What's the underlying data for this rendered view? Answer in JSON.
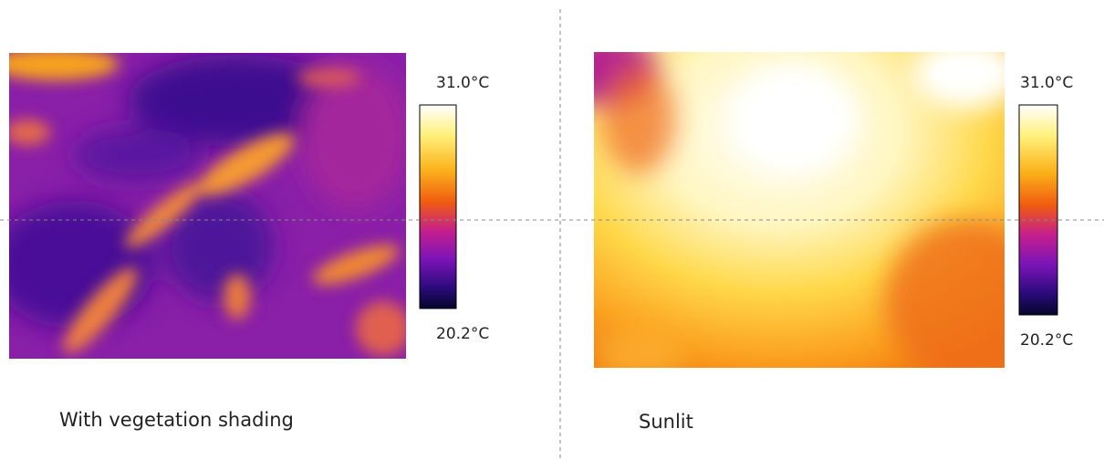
{
  "panels": [
    {
      "caption": "With vegetation shading",
      "scale": {
        "max": "31.0°C",
        "min": "20.2°C"
      }
    },
    {
      "caption": "Sunlit",
      "scale": {
        "max": "31.0°C",
        "min": "20.2°C"
      }
    }
  ]
}
